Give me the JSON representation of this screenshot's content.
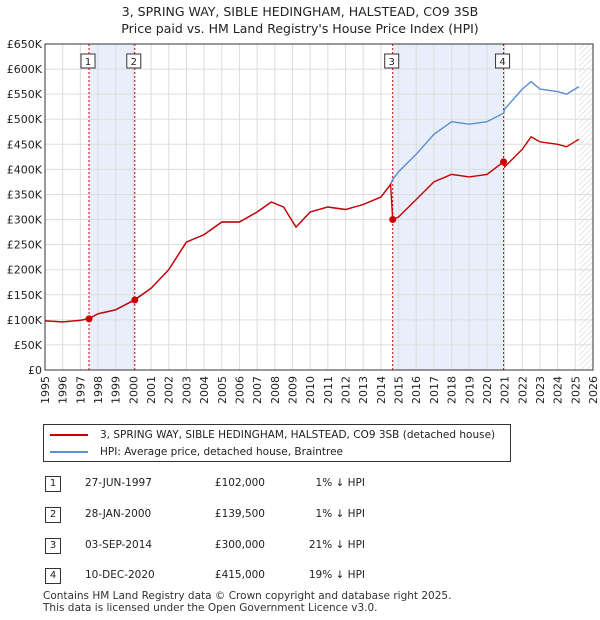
{
  "title_line1": "3, SPRING WAY, SIBLE HEDINGHAM, HALSTEAD, CO9 3SB",
  "title_line2": "Price paid vs. HM Land Registry's House Price Index (HPI)",
  "legend": {
    "property_label": "3, SPRING WAY, SIBLE HEDINGHAM, HALSTEAD, CO9 3SB (detached house)",
    "hpi_label": "HPI: Average price, detached house, Braintree"
  },
  "colors": {
    "property": "#cc0000",
    "hpi": "#5b8fd0",
    "shade": "#e8eefa",
    "grid": "#dddddd",
    "marker_line": "#cc0000"
  },
  "transactions": [
    {
      "num": "1",
      "date": "27-JUN-1997",
      "price": "£102,000",
      "hpi": "1% ↓ HPI"
    },
    {
      "num": "2",
      "date": "28-JAN-2000",
      "price": "£139,500",
      "hpi": "1% ↓ HPI"
    },
    {
      "num": "3",
      "date": "03-SEP-2014",
      "price": "£300,000",
      "hpi": "21% ↓ HPI"
    },
    {
      "num": "4",
      "date": "10-DEC-2020",
      "price": "£415,000",
      "hpi": "19% ↓ HPI"
    }
  ],
  "footer_line1": "Contains HM Land Registry data © Crown copyright and database right 2025.",
  "footer_line2": "This data is licensed under the Open Government Licence v3.0.",
  "chart_data": {
    "type": "line",
    "xlim": [
      1995,
      2026
    ],
    "ylim": [
      0,
      650000
    ],
    "y_ticks": [
      0,
      50000,
      100000,
      150000,
      200000,
      250000,
      300000,
      350000,
      400000,
      450000,
      500000,
      550000,
      600000,
      650000
    ],
    "y_tick_labels": [
      "£0",
      "£50K",
      "£100K",
      "£150K",
      "£200K",
      "£250K",
      "£300K",
      "£350K",
      "£400K",
      "£450K",
      "£500K",
      "£550K",
      "£600K",
      "£650K"
    ],
    "x_ticks": [
      1995,
      1996,
      1997,
      1998,
      1999,
      2000,
      2001,
      2002,
      2003,
      2004,
      2005,
      2006,
      2007,
      2008,
      2009,
      2010,
      2011,
      2012,
      2013,
      2014,
      2015,
      2016,
      2017,
      2018,
      2019,
      2020,
      2021,
      2022,
      2023,
      2024,
      2025,
      2026
    ],
    "x_tick_labels": [
      "1995",
      "1996",
      "1997",
      "1998",
      "1999",
      "2000",
      "2001",
      "2002",
      "2003",
      "2004",
      "2005",
      "2006",
      "2007",
      "2008",
      "2009",
      "2010",
      "2011",
      "2012",
      "2013",
      "2014",
      "2015",
      "2016",
      "2017",
      "2018",
      "2019",
      "2020",
      "2021",
      "2022",
      "2023",
      "2024",
      "2025",
      "2026"
    ],
    "shaded_periods": [
      [
        1997.49,
        2000.08
      ],
      [
        2014.67,
        2020.94
      ]
    ],
    "future_start": 2025.2,
    "sales": [
      {
        "label": "1",
        "x": 1997.49,
        "y": 102000
      },
      {
        "label": "2",
        "x": 2000.08,
        "y": 139500
      },
      {
        "label": "3",
        "x": 2014.67,
        "y": 300000
      },
      {
        "label": "4",
        "x": 2020.94,
        "y": 415000
      }
    ],
    "series": [
      {
        "name": "3, SPRING WAY, SIBLE HEDINGHAM, HALSTEAD, CO9 3SB (detached house)",
        "x": [
          1995,
          1996,
          1997,
          1997.49,
          1998,
          1999,
          2000.08,
          2001,
          2002,
          2003,
          2004,
          2005,
          2006,
          2007,
          2007.8,
          2008.5,
          2009.2,
          2010,
          2011,
          2012,
          2013,
          2014,
          2014.55,
          2014.67,
          2015,
          2016,
          2017,
          2018,
          2019,
          2020,
          2020.94,
          2021,
          2022,
          2022.5,
          2023,
          2024,
          2024.5,
          2025.2
        ],
        "y": [
          98000,
          96000,
          99000,
          102000,
          112000,
          120000,
          139500,
          163000,
          200000,
          255000,
          270000,
          295000,
          295000,
          315000,
          335000,
          325000,
          285000,
          315000,
          325000,
          320000,
          330000,
          345000,
          370000,
          300000,
          305000,
          340000,
          375000,
          390000,
          385000,
          390000,
          415000,
          405000,
          440000,
          465000,
          455000,
          450000,
          445000,
          460000
        ]
      },
      {
        "name": "HPI: Average price, detached house, Braintree",
        "x": [
          1995,
          1996,
          1997,
          1997.49,
          1998,
          1999,
          2000.08,
          2001,
          2002,
          2003,
          2004,
          2005,
          2006,
          2007,
          2007.8,
          2008.5,
          2009.2,
          2010,
          2011,
          2012,
          2013,
          2014,
          2014.55,
          2014.67,
          2015,
          2016,
          2017,
          2018,
          2019,
          2020,
          2020.94,
          2021,
          2022,
          2022.5,
          2023,
          2024,
          2024.5,
          2025.2
        ],
        "y": [
          98000,
          96000,
          99000,
          103000,
          112000,
          120000,
          141000,
          163000,
          200000,
          255000,
          270000,
          295000,
          295000,
          315000,
          335000,
          325000,
          285000,
          315000,
          325000,
          320000,
          330000,
          345000,
          370000,
          380000,
          395000,
          430000,
          470000,
          495000,
          490000,
          495000,
          512000,
          520000,
          560000,
          575000,
          560000,
          555000,
          550000,
          565000
        ]
      }
    ]
  }
}
